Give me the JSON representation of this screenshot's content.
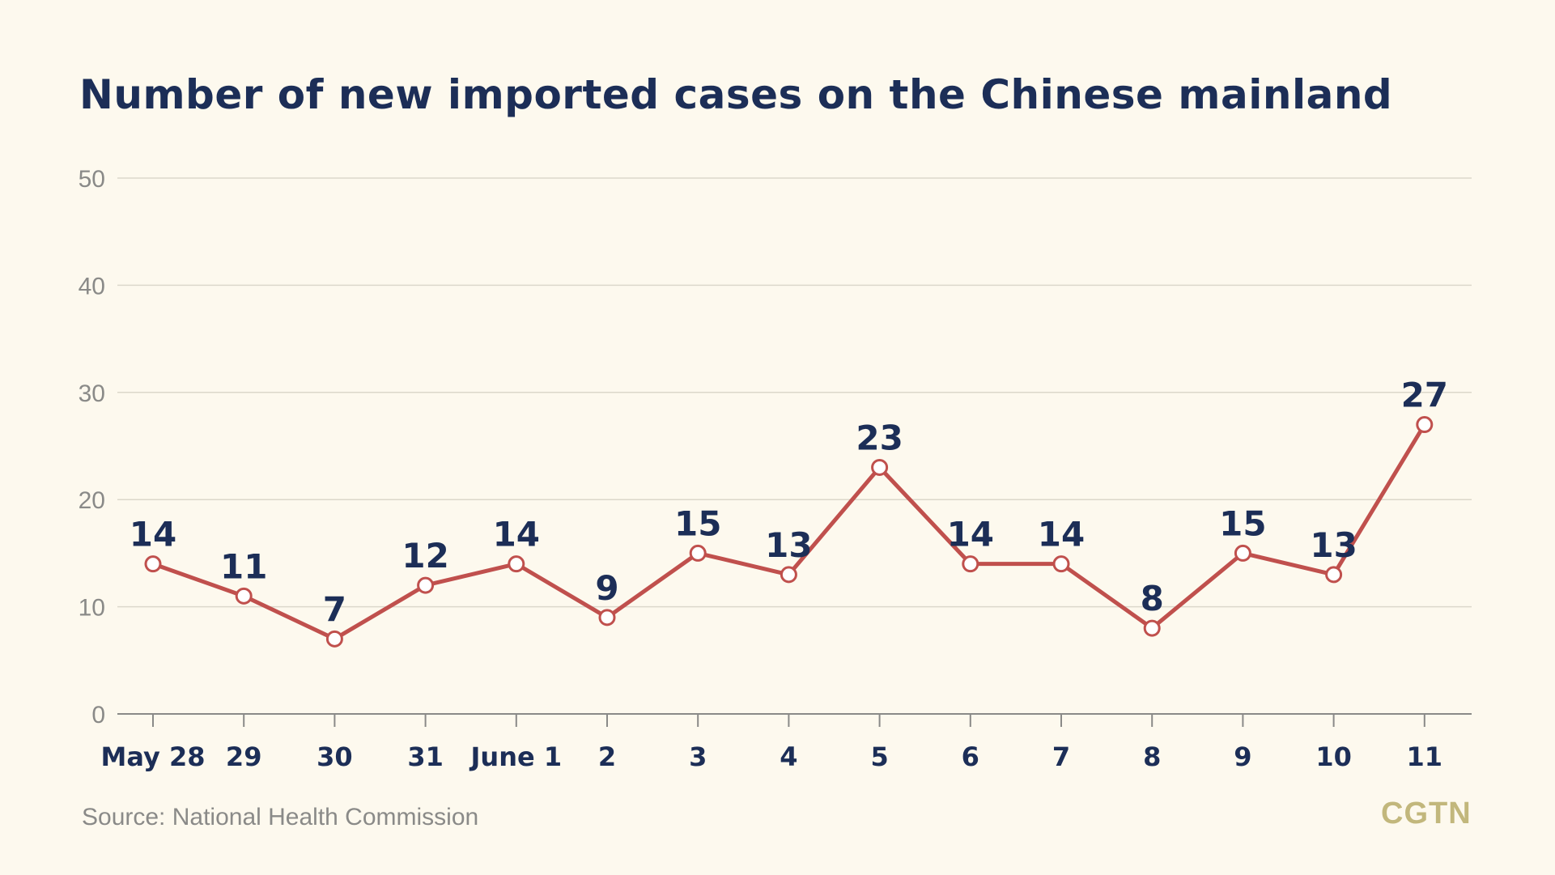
{
  "chart_data": {
    "type": "line",
    "title": "Number of new imported cases on the Chinese mainland",
    "xlabel": "",
    "ylabel": "",
    "categories": [
      "May 28",
      "29",
      "30",
      "31",
      "June 1",
      "2",
      "3",
      "4",
      "5",
      "6",
      "7",
      "8",
      "9",
      "10",
      "11"
    ],
    "values": [
      14,
      11,
      7,
      12,
      14,
      9,
      15,
      13,
      23,
      14,
      14,
      8,
      15,
      13,
      27
    ],
    "y_ticks": [
      0,
      10,
      20,
      30,
      40,
      50
    ],
    "ylim": [
      0,
      50
    ],
    "grid": true,
    "legend": "none",
    "line_color": "#c0504d",
    "label_color": "#1c2e57"
  },
  "source": "Source: National Health Commission",
  "brand": "CGTN"
}
